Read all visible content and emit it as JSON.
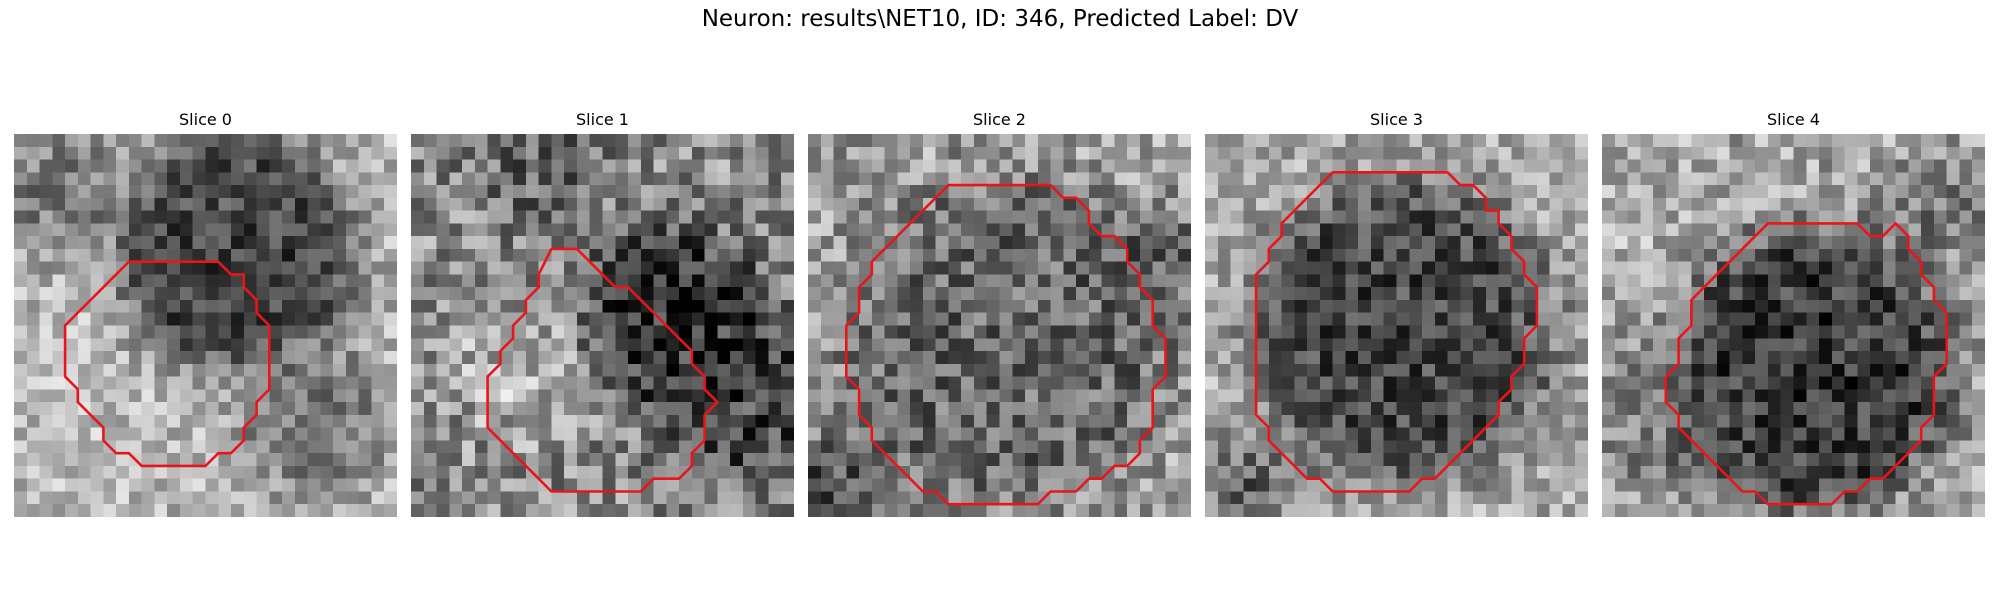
{
  "figure": {
    "title": "Neuron: results\\NET10, ID: 346, Predicted Label: DV"
  },
  "contour_color": "#e8161b",
  "grid_size": 30,
  "slices": [
    {
      "title": "Slice 0",
      "contour": [
        [
          9,
          10
        ],
        [
          16,
          10
        ],
        [
          17,
          11
        ],
        [
          18,
          11
        ],
        [
          18,
          12
        ],
        [
          19,
          13
        ],
        [
          19,
          14
        ],
        [
          20,
          15
        ],
        [
          20,
          20
        ],
        [
          19,
          21
        ],
        [
          19,
          22
        ],
        [
          18,
          23
        ],
        [
          18,
          24
        ],
        [
          17,
          25
        ],
        [
          16,
          25
        ],
        [
          15,
          26
        ],
        [
          10,
          26
        ],
        [
          9,
          25
        ],
        [
          8,
          25
        ],
        [
          7,
          24
        ],
        [
          7,
          23
        ],
        [
          6,
          22
        ],
        [
          5,
          21
        ],
        [
          5,
          20
        ],
        [
          4,
          19
        ],
        [
          4,
          15
        ],
        [
          5,
          14
        ],
        [
          6,
          13
        ],
        [
          7,
          12
        ],
        [
          8,
          11
        ]
      ],
      "texture": {
        "bg": 0.72,
        "blobs": [
          [
            17,
            9,
            9,
            0.25,
            -1.1
          ],
          [
            16,
            3,
            4,
            0.3,
            -1.1
          ],
          [
            23,
            22,
            6,
            0.45,
            0.9
          ],
          [
            3,
            4,
            5,
            0.4,
            0.75
          ]
        ],
        "noise": 0.12,
        "seed": 11
      }
    },
    {
      "title": "Slice 1",
      "contour": [
        [
          11,
          9
        ],
        [
          13,
          9
        ],
        [
          14,
          10
        ],
        [
          15,
          11
        ],
        [
          16,
          12
        ],
        [
          17,
          12
        ],
        [
          18,
          13
        ],
        [
          19,
          14
        ],
        [
          20,
          15
        ],
        [
          21,
          16
        ],
        [
          22,
          17
        ],
        [
          22,
          18
        ],
        [
          23,
          19
        ],
        [
          23,
          20
        ],
        [
          24,
          21
        ],
        [
          23,
          22
        ],
        [
          23,
          24
        ],
        [
          22,
          25
        ],
        [
          22,
          26
        ],
        [
          21,
          27
        ],
        [
          19,
          27
        ],
        [
          18,
          28
        ],
        [
          11,
          28
        ],
        [
          10,
          27
        ],
        [
          9,
          26
        ],
        [
          8,
          25
        ],
        [
          7,
          24
        ],
        [
          6,
          23
        ],
        [
          6,
          19
        ],
        [
          7,
          18
        ],
        [
          7,
          17
        ],
        [
          8,
          16
        ],
        [
          8,
          15
        ],
        [
          9,
          14
        ],
        [
          9,
          13
        ],
        [
          10,
          12
        ],
        [
          10,
          11
        ]
      ],
      "texture": {
        "bg": 0.55,
        "blobs": [
          [
            20,
            14,
            7,
            0.18,
            -1.0
          ],
          [
            26,
            20,
            7,
            0.2,
            -0.8
          ],
          [
            10,
            1,
            6,
            0.3,
            -0.6
          ],
          [
            8,
            18,
            5,
            0.8,
            0.6
          ]
        ],
        "noise": 0.16,
        "seed": 23
      }
    },
    {
      "title": "Slice 2",
      "contour": [
        [
          11,
          4
        ],
        [
          19,
          4
        ],
        [
          20,
          5
        ],
        [
          21,
          5
        ],
        [
          22,
          6
        ],
        [
          22,
          7
        ],
        [
          23,
          8
        ],
        [
          24,
          8
        ],
        [
          25,
          9
        ],
        [
          25,
          10
        ],
        [
          26,
          11
        ],
        [
          26,
          12
        ],
        [
          27,
          13
        ],
        [
          27,
          14
        ],
        [
          27,
          15
        ],
        [
          28,
          16
        ],
        [
          28,
          19
        ],
        [
          27,
          20
        ],
        [
          27,
          23
        ],
        [
          26,
          24
        ],
        [
          26,
          25
        ],
        [
          25,
          26
        ],
        [
          24,
          26
        ],
        [
          23,
          27
        ],
        [
          22,
          27
        ],
        [
          21,
          28
        ],
        [
          19,
          28
        ],
        [
          18,
          29
        ],
        [
          16,
          29
        ],
        [
          11,
          29
        ],
        [
          10,
          28
        ],
        [
          9,
          28
        ],
        [
          8,
          27
        ],
        [
          7,
          26
        ],
        [
          6,
          25
        ],
        [
          5,
          24
        ],
        [
          5,
          23
        ],
        [
          4,
          22
        ],
        [
          4,
          20
        ],
        [
          3,
          19
        ],
        [
          3,
          15
        ],
        [
          4,
          14
        ],
        [
          4,
          12
        ],
        [
          5,
          11
        ],
        [
          5,
          10
        ],
        [
          6,
          9
        ],
        [
          7,
          8
        ],
        [
          8,
          7
        ],
        [
          9,
          6
        ],
        [
          10,
          5
        ]
      ],
      "texture": {
        "bg": 0.62,
        "blobs": [
          [
            15,
            16,
            13,
            0.38,
            0.9
          ],
          [
            1,
            27,
            4,
            0.25,
            -0.8
          ],
          [
            28,
            9,
            3,
            0.2,
            -0.7
          ]
        ],
        "noise": 0.15,
        "seed": 37
      }
    },
    {
      "title": "Slice 3",
      "contour": [
        [
          10,
          3
        ],
        [
          19,
          3
        ],
        [
          20,
          4
        ],
        [
          21,
          4
        ],
        [
          22,
          5
        ],
        [
          22,
          6
        ],
        [
          23,
          6
        ],
        [
          23,
          7
        ],
        [
          24,
          8
        ],
        [
          24,
          9
        ],
        [
          25,
          10
        ],
        [
          25,
          11
        ],
        [
          26,
          12
        ],
        [
          26,
          15
        ],
        [
          25,
          16
        ],
        [
          25,
          18
        ],
        [
          24,
          19
        ],
        [
          24,
          20
        ],
        [
          23,
          21
        ],
        [
          23,
          22
        ],
        [
          22,
          23
        ],
        [
          21,
          24
        ],
        [
          20,
          25
        ],
        [
          19,
          26
        ],
        [
          18,
          27
        ],
        [
          17,
          27
        ],
        [
          16,
          28
        ],
        [
          15,
          28
        ],
        [
          10,
          28
        ],
        [
          9,
          27
        ],
        [
          8,
          27
        ],
        [
          7,
          26
        ],
        [
          6,
          25
        ],
        [
          5,
          24
        ],
        [
          5,
          23
        ],
        [
          4,
          22
        ],
        [
          4,
          19
        ],
        [
          4,
          15
        ],
        [
          4,
          11
        ],
        [
          5,
          10
        ],
        [
          5,
          9
        ],
        [
          6,
          8
        ],
        [
          6,
          7
        ],
        [
          7,
          6
        ],
        [
          8,
          5
        ],
        [
          9,
          4
        ]
      ],
      "texture": {
        "bg": 0.68,
        "blobs": [
          [
            15,
            15,
            12,
            0.27,
            1.0
          ],
          [
            3,
            27,
            3,
            0.2,
            -0.7
          ],
          [
            29,
            14,
            3,
            0.55,
            0.5
          ]
        ],
        "noise": 0.13,
        "seed": 53
      }
    },
    {
      "title": "Slice 4",
      "contour": [
        [
          13,
          7
        ],
        [
          20,
          7
        ],
        [
          21,
          8
        ],
        [
          22,
          8
        ],
        [
          23,
          7
        ],
        [
          24,
          8
        ],
        [
          24,
          9
        ],
        [
          25,
          10
        ],
        [
          25,
          11
        ],
        [
          26,
          12
        ],
        [
          26,
          13
        ],
        [
          27,
          14
        ],
        [
          27,
          18
        ],
        [
          26,
          19
        ],
        [
          26,
          22
        ],
        [
          25,
          23
        ],
        [
          25,
          24
        ],
        [
          24,
          25
        ],
        [
          23,
          26
        ],
        [
          22,
          27
        ],
        [
          21,
          27
        ],
        [
          20,
          28
        ],
        [
          19,
          28
        ],
        [
          18,
          29
        ],
        [
          13,
          29
        ],
        [
          12,
          28
        ],
        [
          11,
          28
        ],
        [
          10,
          27
        ],
        [
          9,
          26
        ],
        [
          8,
          25
        ],
        [
          7,
          24
        ],
        [
          6,
          23
        ],
        [
          6,
          22
        ],
        [
          5,
          21
        ],
        [
          5,
          19
        ],
        [
          6,
          18
        ],
        [
          6,
          16
        ],
        [
          7,
          15
        ],
        [
          7,
          13
        ],
        [
          8,
          12
        ],
        [
          9,
          11
        ],
        [
          10,
          10
        ],
        [
          11,
          9
        ],
        [
          12,
          8
        ]
      ],
      "texture": {
        "bg": 0.65,
        "blobs": [
          [
            16,
            18,
            11,
            0.22,
            1.0
          ],
          [
            4,
            22,
            5,
            0.35,
            -0.6
          ],
          [
            26,
            5,
            4,
            0.35,
            -0.6
          ],
          [
            2,
            4,
            5,
            0.75,
            0.5
          ]
        ],
        "noise": 0.14,
        "seed": 71
      }
    }
  ]
}
